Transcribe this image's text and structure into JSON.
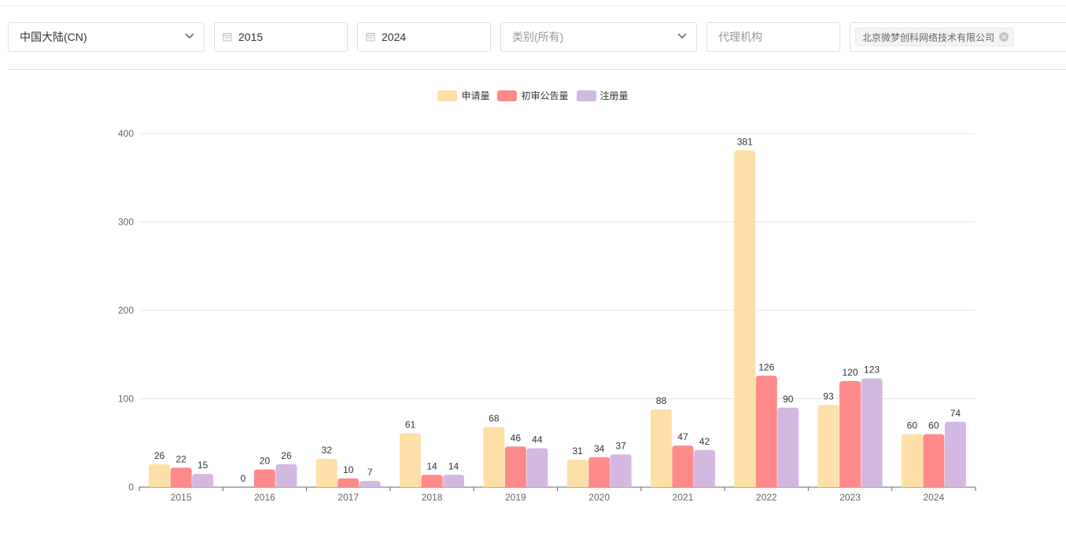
{
  "filters": {
    "region": "中国大陆(CN)",
    "start_year": "2015",
    "end_year": "2024",
    "category_placeholder": "类别(所有)",
    "agency_placeholder": "代理机构",
    "applicant_tag": "北京微梦创科网络技术有限公司"
  },
  "icons": {
    "chevron": "chevron-down-icon",
    "calendar": "calendar-icon",
    "tag_close": "close-circle-icon"
  },
  "chart_data": {
    "type": "bar",
    "categories": [
      "2015",
      "2016",
      "2017",
      "2018",
      "2019",
      "2020",
      "2021",
      "2022",
      "2023",
      "2024"
    ],
    "series": [
      {
        "name": "申请量",
        "color": "#fde0a8",
        "values": [
          26,
          0,
          32,
          61,
          68,
          31,
          88,
          381,
          93,
          60
        ]
      },
      {
        "name": "初审公告量",
        "color": "#fe8a8a",
        "values": [
          22,
          20,
          10,
          14,
          46,
          34,
          47,
          126,
          120,
          60
        ]
      },
      {
        "name": "注册量",
        "color": "#d3b8e2",
        "values": [
          15,
          26,
          7,
          14,
          44,
          37,
          42,
          90,
          123,
          74
        ]
      }
    ],
    "yticks": [
      "0",
      "100",
      "200",
      "300",
      "400"
    ],
    "ylim": [
      0,
      400
    ],
    "grid": true,
    "legend_position": "top-center",
    "show_value_labels": true
  }
}
